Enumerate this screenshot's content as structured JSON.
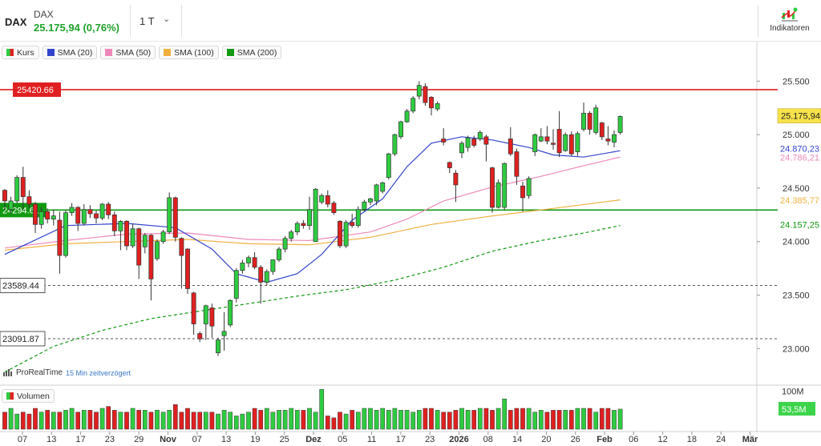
{
  "header": {
    "symbol": "DAX",
    "name": "DAX",
    "price_change": "25.175,94 (0,76%)",
    "period": "1 T",
    "indicators_label": "Indikatoren"
  },
  "legend": {
    "items": [
      {
        "label": "Kurs",
        "color": "split"
      },
      {
        "label": "SMA (20)",
        "color": "#3344cc"
      },
      {
        "label": "SMA (50)",
        "color": "#ee88bb"
      },
      {
        "label": "SMA (100)",
        "color": "#f0b040"
      },
      {
        "label": "SMA (200)",
        "color": "#119911"
      }
    ],
    "volume_label": "Volumen"
  },
  "watermark": {
    "brand": "ProRealTime",
    "delay": "15 Min zeitverzögert"
  },
  "colors": {
    "up": "#2ecc40",
    "down": "#e02020",
    "resistance": "#e02020",
    "support": "#119911",
    "sma20": "#3344cc",
    "sma50": "#ee88bb",
    "sma100": "#f0b040",
    "sma200": "#119911"
  },
  "chart_data": {
    "type": "candlestick",
    "x_tick_labels": [
      "07",
      "13",
      "17",
      "23",
      "29",
      "Nov",
      "07",
      "13",
      "19",
      "25",
      "Dez",
      "05",
      "11",
      "17",
      "23",
      "2026",
      "08",
      "14",
      "20",
      "26",
      "Feb",
      "06",
      "12",
      "18",
      "24",
      "Mär"
    ],
    "y_ticks": [
      {
        "value": 25500,
        "label": "25.500"
      },
      {
        "value": 25000,
        "label": "25.000"
      },
      {
        "value": 24500,
        "label": "24.500"
      },
      {
        "value": 24000,
        "label": "24.000"
      },
      {
        "value": 23500,
        "label": "23.500"
      },
      {
        "value": 23000,
        "label": "23.000"
      }
    ],
    "ylim": [
      22680,
      25660
    ],
    "candles": [
      [
        24480,
        24380,
        24490,
        24300
      ],
      [
        24300,
        24380,
        24420,
        24260
      ],
      [
        24380,
        24600,
        24620,
        24360
      ],
      [
        24600,
        24420,
        24700,
        24300
      ],
      [
        24420,
        24350,
        24480,
        24310
      ],
      [
        24350,
        24160,
        24370,
        24080
      ],
      [
        24160,
        24280,
        24320,
        24120
      ],
      [
        24280,
        24210,
        24310,
        24170
      ],
      [
        24210,
        24240,
        24300,
        24150
      ],
      [
        24200,
        23870,
        24280,
        23700
      ],
      [
        23870,
        24270,
        24290,
        23850
      ],
      [
        24270,
        24320,
        24360,
        24240
      ],
      [
        24320,
        24170,
        24330,
        24100
      ],
      [
        24170,
        24300,
        24350,
        24150
      ],
      [
        24300,
        24260,
        24340,
        24220
      ],
      [
        24260,
        24220,
        24290,
        24170
      ],
      [
        24220,
        24350,
        24360,
        24200
      ],
      [
        24350,
        24250,
        24370,
        24210
      ],
      [
        24250,
        24100,
        24280,
        24050
      ],
      [
        24100,
        24190,
        24200,
        23920
      ],
      [
        24190,
        23960,
        24200,
        23920
      ],
      [
        23960,
        24120,
        24170,
        23940
      ],
      [
        24120,
        23780,
        24130,
        23650
      ],
      [
        23950,
        24060,
        24080,
        23890
      ],
      [
        24060,
        23650,
        24070,
        23450
      ],
      [
        23840,
        24000,
        24020,
        23820
      ],
      [
        24000,
        24090,
        24110,
        23980
      ],
      [
        24090,
        24410,
        24460,
        24070
      ],
      [
        24410,
        24040,
        24420,
        24000
      ],
      [
        24030,
        23870,
        24040,
        23560
      ],
      [
        23930,
        23560,
        23940,
        23510
      ],
      [
        23520,
        23230,
        23530,
        23130
      ],
      [
        23140,
        23090,
        23160,
        23060
      ],
      [
        23230,
        23400,
        23410,
        23080
      ],
      [
        23380,
        23210,
        23420,
        23100
      ],
      [
        22960,
        23080,
        23100,
        22930
      ],
      [
        23120,
        23160,
        23340,
        22980
      ],
      [
        23220,
        23450,
        23460,
        23200
      ],
      [
        23470,
        23730,
        23750,
        23430
      ],
      [
        23730,
        23800,
        23830,
        23700
      ],
      [
        23800,
        23850,
        23870,
        23760
      ],
      [
        23850,
        23760,
        23900,
        23740
      ],
      [
        23760,
        23620,
        23780,
        23420
      ],
      [
        23620,
        23720,
        23740,
        23590
      ],
      [
        23720,
        23830,
        23830,
        23690
      ],
      [
        23830,
        23930,
        23950,
        23810
      ],
      [
        23930,
        24030,
        24050,
        23900
      ],
      [
        24030,
        24090,
        24110,
        24000
      ],
      [
        24090,
        24170,
        24190,
        24060
      ],
      [
        24170,
        24150,
        24200,
        24120
      ],
      [
        24150,
        24300,
        24420,
        24110
      ],
      [
        24000,
        24490,
        24500,
        24000
      ],
      [
        24370,
        24430,
        24450,
        24350
      ],
      [
        24430,
        24350,
        24480,
        24320
      ],
      [
        24360,
        24270,
        24380,
        24250
      ],
      [
        24190,
        23960,
        24200,
        23940
      ],
      [
        23960,
        24180,
        24200,
        23940
      ],
      [
        24180,
        24150,
        24260,
        24130
      ],
      [
        24150,
        24300,
        24330,
        24130
      ],
      [
        24300,
        24370,
        24390,
        24280
      ],
      [
        24370,
        24400,
        24410,
        24340
      ],
      [
        24380,
        24530,
        24540,
        24340
      ],
      [
        24470,
        24550,
        24560,
        24450
      ],
      [
        24600,
        24820,
        24830,
        24580
      ],
      [
        24820,
        25000,
        25010,
        24800
      ],
      [
        24980,
        25120,
        25130,
        24960
      ],
      [
        25120,
        25220,
        25240,
        25110
      ],
      [
        25220,
        25340,
        25360,
        25200
      ],
      [
        25360,
        25460,
        25500,
        25330
      ],
      [
        25450,
        25300,
        25480,
        25270
      ],
      [
        25350,
        25250,
        25360,
        25180
      ],
      [
        25240,
        25290,
        25310,
        25220
      ],
      [
        24960,
        24930,
        25060,
        24900
      ],
      [
        24740,
        24690,
        24750,
        24640
      ],
      [
        24640,
        24530,
        24670,
        24370
      ],
      [
        24830,
        24920,
        24940,
        24780
      ],
      [
        24880,
        24970,
        24990,
        24840
      ],
      [
        24960,
        24900,
        24990,
        24880
      ],
      [
        24960,
        25020,
        25040,
        24940
      ],
      [
        24980,
        24910,
        25000,
        24750
      ],
      [
        24690,
        24320,
        24700,
        24270
      ],
      [
        24320,
        24550,
        24580,
        24310
      ],
      [
        24320,
        24730,
        24740,
        24300
      ],
      [
        24960,
        24820,
        25070,
        24800
      ],
      [
        24840,
        24610,
        24870,
        24530
      ],
      [
        24520,
        24410,
        24560,
        24280
      ],
      [
        24430,
        24590,
        24610,
        24400
      ],
      [
        24840,
        25000,
        25010,
        24800
      ],
      [
        24940,
        24980,
        25060,
        24930
      ],
      [
        24980,
        24940,
        25080,
        24910
      ],
      [
        24920,
        24910,
        25050,
        24860
      ],
      [
        25050,
        24830,
        25220,
        24790
      ],
      [
        24850,
        25000,
        25020,
        24840
      ],
      [
        25000,
        24820,
        25030,
        24800
      ],
      [
        24840,
        25010,
        25030,
        24800
      ],
      [
        25050,
        25200,
        25300,
        25030
      ],
      [
        25200,
        25050,
        25220,
        25000
      ],
      [
        25020,
        25250,
        25280,
        25000
      ],
      [
        25110,
        24980,
        25120,
        24950
      ],
      [
        24960,
        24940,
        25080,
        24900
      ],
      [
        24930,
        25000,
        25040,
        24880
      ],
      [
        25020,
        25170,
        25180,
        25000
      ]
    ],
    "sma20": [
      [
        0,
        23880
      ],
      [
        10,
        24150
      ],
      [
        20,
        24170
      ],
      [
        28,
        24130
      ],
      [
        34,
        23930
      ],
      [
        38,
        23700
      ],
      [
        43,
        23620
      ],
      [
        48,
        23700
      ],
      [
        52,
        23880
      ],
      [
        57,
        24200
      ],
      [
        62,
        24400
      ],
      [
        66,
        24700
      ],
      [
        70,
        24920
      ],
      [
        75,
        24980
      ],
      [
        80,
        24950
      ],
      [
        86,
        24880
      ],
      [
        90,
        24810
      ],
      [
        95,
        24790
      ],
      [
        101,
        24850
      ]
    ],
    "sma50": [
      [
        0,
        23940
      ],
      [
        10,
        24010
      ],
      [
        20,
        24070
      ],
      [
        30,
        24080
      ],
      [
        40,
        24020
      ],
      [
        50,
        24010
      ],
      [
        60,
        24090
      ],
      [
        66,
        24210
      ],
      [
        72,
        24380
      ],
      [
        80,
        24510
      ],
      [
        88,
        24610
      ],
      [
        95,
        24710
      ],
      [
        101,
        24790
      ]
    ],
    "sma100": [
      [
        0,
        23920
      ],
      [
        10,
        23980
      ],
      [
        20,
        24000
      ],
      [
        30,
        24020
      ],
      [
        40,
        23980
      ],
      [
        50,
        23970
      ],
      [
        60,
        24040
      ],
      [
        70,
        24160
      ],
      [
        80,
        24240
      ],
      [
        90,
        24310
      ],
      [
        101,
        24390
      ]
    ],
    "sma200": [
      [
        0,
        22780
      ],
      [
        8,
        23020
      ],
      [
        16,
        23170
      ],
      [
        24,
        23280
      ],
      [
        32,
        23350
      ],
      [
        40,
        23420
      ],
      [
        48,
        23490
      ],
      [
        56,
        23550
      ],
      [
        64,
        23640
      ],
      [
        72,
        23760
      ],
      [
        80,
        23910
      ],
      [
        88,
        24010
      ],
      [
        95,
        24080
      ],
      [
        101,
        24150
      ]
    ],
    "levels": [
      {
        "label": "25420.66",
        "value": 25420.66,
        "color": "#e02020"
      },
      {
        "label": "24294.61",
        "value": 24294.61,
        "color": "#119911"
      },
      {
        "label": "23589.44",
        "value": 23589.44,
        "color": "#555555"
      },
      {
        "label": "23091.87",
        "value": 23091.87,
        "color": "#555555"
      }
    ],
    "value_tags": [
      {
        "label": "25.175,94",
        "value": 25175.94,
        "kind": "price"
      },
      {
        "label": "24.870,23",
        "value": 24870.23,
        "kind": "sma20"
      },
      {
        "label": "24.786,21",
        "value": 24786.21,
        "kind": "sma50"
      },
      {
        "label": "24.385,77",
        "value": 24385.77,
        "kind": "sma100"
      },
      {
        "label": "24.157,25",
        "value": 24157.25,
        "kind": "sma200"
      }
    ],
    "volume": {
      "y_tick_label": "100M",
      "y_tick_value": 100,
      "ymax": 110,
      "last_label": "53,5M",
      "values": [
        45,
        55,
        40,
        45,
        40,
        55,
        45,
        50,
        45,
        45,
        50,
        55,
        45,
        50,
        50,
        45,
        55,
        60,
        50,
        45,
        45,
        55,
        50,
        50,
        45,
        50,
        45,
        50,
        65,
        45,
        55,
        45,
        45,
        45,
        45,
        40,
        50,
        45,
        35,
        40,
        45,
        55,
        50,
        55,
        45,
        50,
        50,
        55,
        50,
        50,
        55,
        45,
        105,
        35,
        30,
        45,
        40,
        50,
        45,
        55,
        55,
        50,
        55,
        50,
        55,
        50,
        50,
        45,
        50,
        55,
        55,
        50,
        45,
        45,
        50,
        55,
        50,
        50,
        55,
        55,
        50,
        55,
        80,
        50,
        55,
        55,
        55,
        45,
        50,
        45,
        50,
        50,
        50,
        50,
        55,
        55,
        55,
        45,
        55,
        55,
        50,
        53
      ]
    }
  }
}
